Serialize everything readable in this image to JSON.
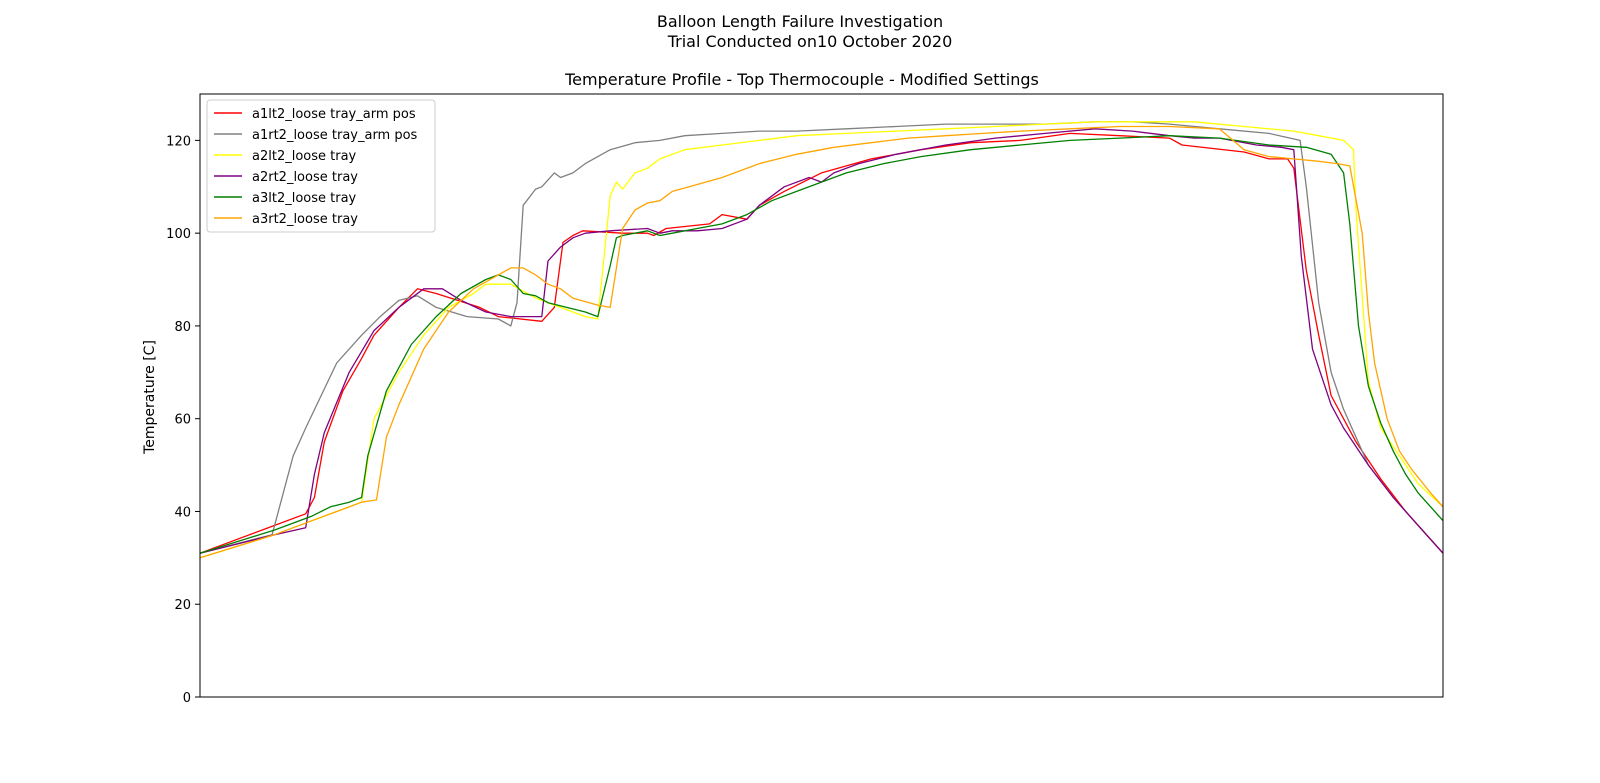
{
  "suptitle": "Balloon Length Failure Investigation",
  "subtitle": "Trial Conducted on10 October 2020",
  "chart_data": {
    "type": "line",
    "title": "Temperature Profile - Top Thermocouple - Modified Settings",
    "xlabel": "",
    "ylabel": "Temperature [C]",
    "xlim": [
      0,
      100
    ],
    "ylim": [
      0,
      130
    ],
    "yticks": [
      0,
      20,
      40,
      60,
      80,
      100,
      120
    ],
    "grid": false,
    "legend_position": "upper-left",
    "series": [
      {
        "name": "a1lt2_loose tray_arm pos",
        "color": "#ff0000",
        "points": [
          [
            0,
            31
          ],
          [
            6,
            37
          ],
          [
            8.5,
            39.5
          ],
          [
            9.2,
            43
          ],
          [
            10,
            55
          ],
          [
            11.5,
            66
          ],
          [
            13,
            73
          ],
          [
            14,
            78
          ],
          [
            16,
            84
          ],
          [
            17.5,
            88
          ],
          [
            19,
            87
          ],
          [
            22.5,
            84
          ],
          [
            24,
            82
          ],
          [
            27.5,
            81
          ],
          [
            28.5,
            84
          ],
          [
            29.2,
            98
          ],
          [
            30,
            99.5
          ],
          [
            30.8,
            100.5
          ],
          [
            34,
            100
          ],
          [
            36,
            100
          ],
          [
            36.5,
            99.5
          ],
          [
            37.5,
            101
          ],
          [
            41,
            102
          ],
          [
            42,
            104
          ],
          [
            44,
            103
          ],
          [
            45,
            106
          ],
          [
            47,
            109
          ],
          [
            50,
            113
          ],
          [
            54,
            116
          ],
          [
            58,
            118
          ],
          [
            62,
            119.5
          ],
          [
            66,
            120
          ],
          [
            70,
            121.5
          ],
          [
            74,
            121
          ],
          [
            78,
            120.5
          ],
          [
            79,
            119
          ],
          [
            84,
            117.5
          ],
          [
            86,
            116
          ],
          [
            87.5,
            116
          ],
          [
            88,
            114
          ],
          [
            89,
            92
          ],
          [
            90,
            78
          ],
          [
            91,
            65
          ],
          [
            93,
            55
          ],
          [
            95,
            47
          ],
          [
            97,
            40
          ],
          [
            99,
            34
          ],
          [
            100,
            31
          ]
        ]
      },
      {
        "name": "a1rt2_loose tray_arm pos",
        "color": "#808080",
        "points": [
          [
            0,
            31
          ],
          [
            5.8,
            35
          ],
          [
            6,
            37
          ],
          [
            7.5,
            52
          ],
          [
            8.5,
            58
          ],
          [
            11,
            72
          ],
          [
            13,
            78
          ],
          [
            14.5,
            82
          ],
          [
            16,
            85.5
          ],
          [
            17.5,
            86.5
          ],
          [
            19,
            84
          ],
          [
            21.5,
            82
          ],
          [
            24,
            81.5
          ],
          [
            25,
            80
          ],
          [
            25.5,
            85
          ],
          [
            26,
            106
          ],
          [
            27,
            109.5
          ],
          [
            27.5,
            110
          ],
          [
            28.5,
            113
          ],
          [
            29,
            112
          ],
          [
            30,
            113
          ],
          [
            31,
            115
          ],
          [
            33,
            118
          ],
          [
            35,
            119.5
          ],
          [
            37,
            120
          ],
          [
            39,
            121
          ],
          [
            42,
            121.5
          ],
          [
            45,
            122
          ],
          [
            48,
            122
          ],
          [
            52,
            122.5
          ],
          [
            56,
            123
          ],
          [
            60,
            123.5
          ],
          [
            64,
            123.5
          ],
          [
            68,
            123.5
          ],
          [
            72,
            124
          ],
          [
            75,
            124
          ],
          [
            78,
            123.5
          ],
          [
            82,
            122.5
          ],
          [
            86,
            121.5
          ],
          [
            88.5,
            120
          ],
          [
            89,
            110
          ],
          [
            90,
            85
          ],
          [
            91,
            70
          ],
          [
            92,
            62
          ],
          [
            93,
            56
          ],
          [
            94,
            50
          ],
          [
            96,
            43
          ],
          [
            98,
            37
          ],
          [
            100,
            31
          ]
        ]
      },
      {
        "name": "a2lt2_loose tray",
        "color": "#ffff00",
        "points": [
          [
            0,
            30
          ],
          [
            6,
            35
          ],
          [
            11,
            40
          ],
          [
            13,
            42
          ],
          [
            14,
            60
          ],
          [
            16,
            70
          ],
          [
            18,
            78
          ],
          [
            20,
            84
          ],
          [
            22,
            87
          ],
          [
            23,
            89
          ],
          [
            25,
            89
          ],
          [
            27,
            86
          ],
          [
            30,
            83
          ],
          [
            31,
            82
          ],
          [
            32,
            81.5
          ],
          [
            33,
            108
          ],
          [
            33.5,
            111
          ],
          [
            34,
            109.5
          ],
          [
            35,
            113
          ],
          [
            36,
            114
          ],
          [
            37,
            116
          ],
          [
            39,
            118
          ],
          [
            42,
            119
          ],
          [
            45,
            120
          ],
          [
            48,
            121
          ],
          [
            52,
            121.5
          ],
          [
            56,
            122
          ],
          [
            60,
            122.5
          ],
          [
            64,
            123
          ],
          [
            68,
            123.5
          ],
          [
            72,
            124
          ],
          [
            76,
            124
          ],
          [
            80,
            124
          ],
          [
            84,
            123
          ],
          [
            88,
            122
          ],
          [
            90,
            121
          ],
          [
            92,
            120
          ],
          [
            92.8,
            118
          ],
          [
            93,
            105
          ],
          [
            94,
            68
          ],
          [
            95,
            58
          ],
          [
            97,
            50
          ],
          [
            98,
            46
          ],
          [
            100,
            41
          ]
        ]
      },
      {
        "name": "a2rt2_loose tray",
        "color": "#800080",
        "points": [
          [
            0,
            31
          ],
          [
            6,
            35
          ],
          [
            8.5,
            36.5
          ],
          [
            9.2,
            48
          ],
          [
            10,
            57
          ],
          [
            12,
            70
          ],
          [
            14,
            79
          ],
          [
            16,
            84
          ],
          [
            18,
            88
          ],
          [
            19.5,
            88
          ],
          [
            21,
            85.5
          ],
          [
            23,
            83
          ],
          [
            25,
            82
          ],
          [
            27,
            82
          ],
          [
            27.5,
            82
          ],
          [
            28,
            94
          ],
          [
            29,
            97
          ],
          [
            30,
            99
          ],
          [
            31,
            100
          ],
          [
            33,
            100.5
          ],
          [
            36,
            101
          ],
          [
            37,
            100
          ],
          [
            38,
            100.5
          ],
          [
            40,
            100.5
          ],
          [
            42,
            101
          ],
          [
            44,
            103
          ],
          [
            45,
            106
          ],
          [
            47,
            110
          ],
          [
            49,
            112
          ],
          [
            50,
            111
          ],
          [
            51,
            113
          ],
          [
            53,
            115
          ],
          [
            56,
            117
          ],
          [
            60,
            119
          ],
          [
            64,
            120.5
          ],
          [
            68,
            121.5
          ],
          [
            72,
            122.5
          ],
          [
            75,
            122
          ],
          [
            78,
            121
          ],
          [
            80,
            120.5
          ],
          [
            82,
            120.5
          ],
          [
            85,
            119
          ],
          [
            87,
            118.5
          ],
          [
            88,
            118
          ],
          [
            88.6,
            95
          ],
          [
            89.5,
            75
          ],
          [
            91,
            63
          ],
          [
            92,
            58
          ],
          [
            94,
            50
          ],
          [
            96,
            43
          ],
          [
            98,
            37
          ],
          [
            100,
            31
          ]
        ]
      },
      {
        "name": "a3lt2_loose tray",
        "color": "#008000",
        "points": [
          [
            0,
            31
          ],
          [
            6,
            36
          ],
          [
            9,
            39
          ],
          [
            10.5,
            41
          ],
          [
            12,
            42
          ],
          [
            13,
            43
          ],
          [
            13.5,
            52
          ],
          [
            15,
            66
          ],
          [
            17,
            76
          ],
          [
            19,
            82
          ],
          [
            21,
            87
          ],
          [
            23,
            90
          ],
          [
            24,
            91
          ],
          [
            25,
            90
          ],
          [
            26,
            87
          ],
          [
            27,
            86.5
          ],
          [
            28,
            85
          ],
          [
            29.5,
            84
          ],
          [
            31,
            83
          ],
          [
            32,
            82
          ],
          [
            33,
            93
          ],
          [
            33.5,
            99
          ],
          [
            34,
            99.5
          ],
          [
            36,
            100.5
          ],
          [
            37,
            99.5
          ],
          [
            38,
            100
          ],
          [
            40,
            101
          ],
          [
            42,
            102
          ],
          [
            44,
            104
          ],
          [
            46,
            107
          ],
          [
            48,
            109
          ],
          [
            50,
            111
          ],
          [
            52,
            113
          ],
          [
            55,
            115
          ],
          [
            58,
            116.5
          ],
          [
            62,
            118
          ],
          [
            66,
            119
          ],
          [
            70,
            120
          ],
          [
            74,
            120.5
          ],
          [
            78,
            121
          ],
          [
            82,
            120.5
          ],
          [
            86,
            119
          ],
          [
            89,
            118.5
          ],
          [
            91,
            117
          ],
          [
            92,
            113
          ],
          [
            92.5,
            102
          ],
          [
            93.2,
            80
          ],
          [
            94,
            67
          ],
          [
            95,
            59
          ],
          [
            96,
            53
          ],
          [
            97,
            48
          ],
          [
            98,
            44
          ],
          [
            99,
            41
          ],
          [
            100,
            38
          ]
        ]
      },
      {
        "name": "a3rt2_loose tray",
        "color": "#ffa500",
        "points": [
          [
            0,
            30
          ],
          [
            6,
            35
          ],
          [
            9,
            38
          ],
          [
            11,
            40
          ],
          [
            13,
            42
          ],
          [
            14.2,
            42.5
          ],
          [
            15,
            56
          ],
          [
            16,
            63
          ],
          [
            18,
            75
          ],
          [
            20,
            83
          ],
          [
            22,
            88
          ],
          [
            24,
            91
          ],
          [
            25,
            92.5
          ],
          [
            26,
            92.5
          ],
          [
            27,
            91
          ],
          [
            28,
            89
          ],
          [
            29,
            88
          ],
          [
            30,
            86
          ],
          [
            32,
            84.5
          ],
          [
            33,
            84
          ],
          [
            34,
            101
          ],
          [
            35,
            105
          ],
          [
            36,
            106.5
          ],
          [
            37,
            107
          ],
          [
            38,
            109
          ],
          [
            40,
            110.5
          ],
          [
            42,
            112
          ],
          [
            45,
            115
          ],
          [
            48,
            117
          ],
          [
            51,
            118.5
          ],
          [
            54,
            119.5
          ],
          [
            57,
            120.5
          ],
          [
            60,
            121
          ],
          [
            63,
            121.5
          ],
          [
            66,
            122
          ],
          [
            70,
            122.5
          ],
          [
            74,
            123
          ],
          [
            78,
            123
          ],
          [
            82,
            122.5
          ],
          [
            84,
            118
          ],
          [
            86,
            116.5
          ],
          [
            88,
            116
          ],
          [
            90,
            115.5
          ],
          [
            91.5,
            115
          ],
          [
            92.5,
            114.5
          ],
          [
            93.5,
            100
          ],
          [
            94,
            83
          ],
          [
            94.5,
            72
          ],
          [
            95.5,
            60
          ],
          [
            96.5,
            53
          ],
          [
            97.5,
            49
          ],
          [
            99,
            44
          ],
          [
            100,
            41
          ]
        ]
      }
    ]
  }
}
